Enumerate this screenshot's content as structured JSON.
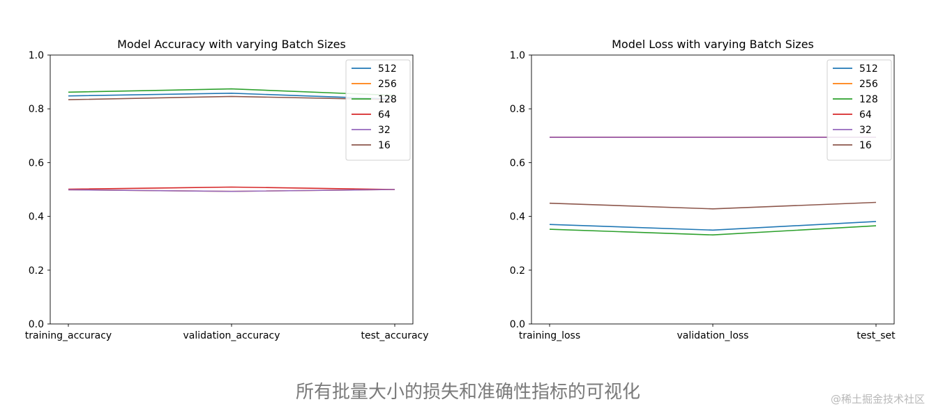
{
  "caption": "所有批量大小的损失和准确性指标的可视化",
  "watermark": "@稀土掘金技术社区",
  "chart_data": [
    {
      "type": "line",
      "title": "Model Accuracy with varying Batch Sizes",
      "categories": [
        "training_accuracy",
        "validation_accuracy",
        "test_accuracy"
      ],
      "ylim": [
        0,
        1.0
      ],
      "yticks": [
        "0.0",
        "0.2",
        "0.4",
        "0.6",
        "0.8",
        "1.0"
      ],
      "legend_position": "top-right",
      "grid": false,
      "series": [
        {
          "name": "512",
          "color": "#1f77b4",
          "values": [
            0.848,
            0.858,
            0.836
          ]
        },
        {
          "name": "256",
          "color": "#ff7f0e",
          "values": [
            0.499,
            0.493,
            0.5
          ]
        },
        {
          "name": "128",
          "color": "#2ca02c",
          "values": [
            0.862,
            0.874,
            0.85
          ]
        },
        {
          "name": "64",
          "color": "#d62728",
          "values": [
            0.501,
            0.509,
            0.5
          ]
        },
        {
          "name": "32",
          "color": "#9467bd",
          "values": [
            0.499,
            0.493,
            0.5
          ]
        },
        {
          "name": "16",
          "color": "#8c564b",
          "values": [
            0.834,
            0.846,
            0.834
          ]
        }
      ]
    },
    {
      "type": "line",
      "title": "Model Loss with varying Batch Sizes",
      "categories": [
        "training_loss",
        "validation_loss",
        "test_set"
      ],
      "ylim": [
        0,
        1.0
      ],
      "yticks": [
        "0.0",
        "0.2",
        "0.4",
        "0.6",
        "0.8",
        "1.0"
      ],
      "legend_position": "top-right",
      "grid": false,
      "series": [
        {
          "name": "512",
          "color": "#1f77b4",
          "values": [
            0.37,
            0.349,
            0.381
          ]
        },
        {
          "name": "256",
          "color": "#ff7f0e",
          "values": [
            0.694,
            0.694,
            0.694
          ]
        },
        {
          "name": "128",
          "color": "#2ca02c",
          "values": [
            0.352,
            0.331,
            0.365
          ]
        },
        {
          "name": "64",
          "color": "#d62728",
          "values": [
            0.694,
            0.694,
            0.694
          ]
        },
        {
          "name": "32",
          "color": "#9467bd",
          "values": [
            0.694,
            0.694,
            0.694
          ]
        },
        {
          "name": "16",
          "color": "#8c564b",
          "values": [
            0.449,
            0.428,
            0.452
          ]
        }
      ]
    }
  ]
}
